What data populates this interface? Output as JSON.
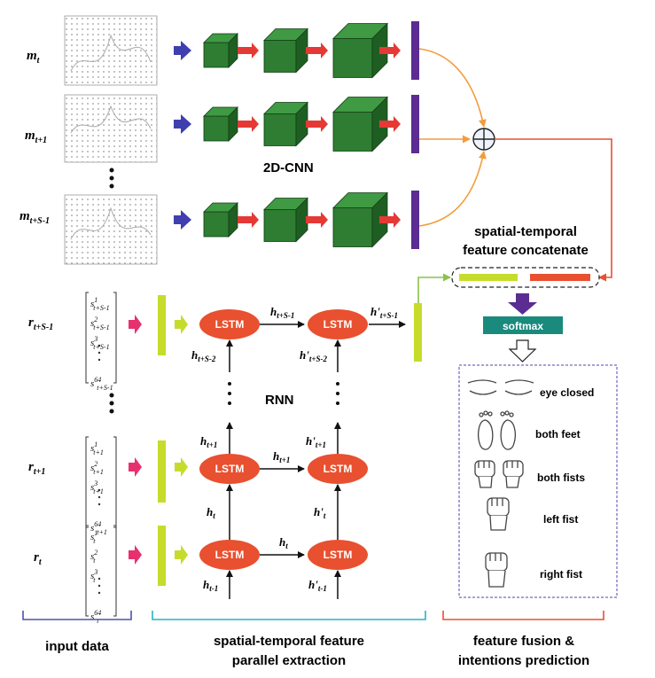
{
  "inputs": {
    "m_labels": [
      {
        "base": "m",
        "sub": "t"
      },
      {
        "base": "m",
        "sub": "t+1"
      },
      {
        "base": "m",
        "sub": "t+S-1"
      }
    ],
    "r_labels": [
      {
        "base": "r",
        "sub": "t+S-1"
      },
      {
        "base": "r",
        "sub": "t+1"
      },
      {
        "base": "r",
        "sub": "t"
      }
    ],
    "vectors": [
      {
        "base": "s",
        "sub": "t+S-1",
        "sups": [
          "1",
          "2",
          "3",
          "64"
        ]
      },
      {
        "base": "s",
        "sub": "t+1",
        "sups": [
          "1",
          "2",
          "3",
          "64"
        ]
      },
      {
        "base": "s",
        "sub": "t",
        "sups": [
          "1",
          "2",
          "3",
          "64"
        ]
      }
    ]
  },
  "cnn": {
    "label": "2D-CNN"
  },
  "concat": {
    "label_line1": "spatial-temporal",
    "label_line2": "feature concatenate"
  },
  "softmax": {
    "label": "softmax"
  },
  "rnn": {
    "label": "RNN",
    "lstm_label": "LSTM",
    "h_labels": {
      "h_tS1": {
        "base": "h",
        "sub": "t+S-1"
      },
      "h_tS2": {
        "base": "h",
        "sub": "t+S-2"
      },
      "hp_tS1": {
        "base": "h'",
        "sub": "t+S-1"
      },
      "hp_tS2": {
        "base": "h'",
        "sub": "t+S-2"
      },
      "h_t1": {
        "base": "h",
        "sub": "t+1"
      },
      "h_t1_mid": {
        "base": "h",
        "sub": "t+1"
      },
      "hp_t1": {
        "base": "h'",
        "sub": "t+1"
      },
      "h_t": {
        "base": "h",
        "sub": "t"
      },
      "h_t_mid": {
        "base": "h",
        "sub": "t"
      },
      "hp_t": {
        "base": "h'",
        "sub": "t"
      },
      "h_tm1": {
        "base": "h",
        "sub": "t-1"
      },
      "hp_tm1": {
        "base": "h'",
        "sub": "t-1"
      }
    }
  },
  "intentions": [
    {
      "label": "eye closed",
      "icon": "eyes-closed-icon"
    },
    {
      "label": "both feet",
      "icon": "feet-icon"
    },
    {
      "label": "both fists",
      "icon": "both-fists-icon"
    },
    {
      "label": "left fist",
      "icon": "left-fist-icon"
    },
    {
      "label": "right fist",
      "icon": "right-fist-icon"
    }
  ],
  "sections": {
    "input": "input data",
    "extraction_line1": "spatial-temporal feature",
    "extraction_line2": "parallel extraction",
    "fusion_line1": "feature fusion &",
    "fusion_line2": "intentions prediction"
  },
  "colors": {
    "cnn_cube": "#2e7d32",
    "cnn_arrow": "#e53935",
    "input_arrow": "#3f3fb0",
    "feature_bar": "#5b2c91",
    "merge_line": "#f39c3a",
    "concat_line": "#e8502f",
    "rnn_bar": "#c6dc2c",
    "lstm": "#e8502f",
    "r_arrow": "#e8306e",
    "softmax": "#1a8a7d",
    "softmax_arrow": "#5b2c91",
    "bracket_input": "#5050b0",
    "bracket_extract": "#27b3c4",
    "bracket_fusion": "#e8502f"
  }
}
